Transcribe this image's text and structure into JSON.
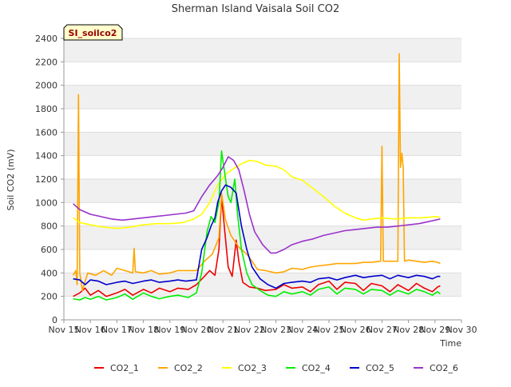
{
  "chart_data": {
    "type": "line",
    "title": "Sherman Island Vaisala Soil CO2",
    "badge": "SI_soilco2",
    "xlabel": "Time",
    "ylabel": "Soil CO2 (mV)",
    "xlim": [
      15,
      30
    ],
    "ylim": [
      0,
      2400
    ],
    "x_ticks": [
      {
        "value": 15,
        "label": "Nov 15"
      },
      {
        "value": 16,
        "label": "Nov 16"
      },
      {
        "value": 17,
        "label": "Nov 17"
      },
      {
        "value": 18,
        "label": "Nov 18"
      },
      {
        "value": 19,
        "label": "Nov 19"
      },
      {
        "value": 20,
        "label": "Nov 20"
      },
      {
        "value": 21,
        "label": "Nov 21"
      },
      {
        "value": 22,
        "label": "Nov 22"
      },
      {
        "value": 23,
        "label": "Nov 23"
      },
      {
        "value": 24,
        "label": "Nov 24"
      },
      {
        "value": 25,
        "label": "Nov 25"
      },
      {
        "value": 26,
        "label": "Nov 26"
      },
      {
        "value": 27,
        "label": "Nov 27"
      },
      {
        "value": 28,
        "label": "Nov 28"
      },
      {
        "value": 29,
        "label": "Nov 29"
      },
      {
        "value": 30,
        "label": "Nov 30"
      }
    ],
    "y_ticks": [
      0,
      200,
      400,
      600,
      800,
      1000,
      1200,
      1400,
      1600,
      1800,
      2000,
      2200,
      2400
    ],
    "grid": true,
    "legend_position": "bottom",
    "series": [
      {
        "name": "CO2_1",
        "color": "#ee0000",
        "points": [
          [
            15.35,
            200
          ],
          [
            15.6,
            230
          ],
          [
            15.8,
            270
          ],
          [
            16.0,
            210
          ],
          [
            16.3,
            250
          ],
          [
            16.6,
            200
          ],
          [
            17.0,
            230
          ],
          [
            17.3,
            260
          ],
          [
            17.6,
            210
          ],
          [
            18.0,
            260
          ],
          [
            18.3,
            230
          ],
          [
            18.6,
            270
          ],
          [
            19.0,
            240
          ],
          [
            19.3,
            270
          ],
          [
            19.7,
            260
          ],
          [
            20.0,
            300
          ],
          [
            20.3,
            370
          ],
          [
            20.5,
            420
          ],
          [
            20.7,
            380
          ],
          [
            20.85,
            600
          ],
          [
            20.95,
            1050
          ],
          [
            21.05,
            800
          ],
          [
            21.2,
            450
          ],
          [
            21.35,
            370
          ],
          [
            21.5,
            680
          ],
          [
            21.6,
            500
          ],
          [
            21.75,
            320
          ],
          [
            22.0,
            280
          ],
          [
            22.3,
            270
          ],
          [
            22.6,
            250
          ],
          [
            23.0,
            260
          ],
          [
            23.3,
            300
          ],
          [
            23.6,
            270
          ],
          [
            24.0,
            280
          ],
          [
            24.3,
            240
          ],
          [
            24.6,
            300
          ],
          [
            25.0,
            330
          ],
          [
            25.3,
            260
          ],
          [
            25.6,
            320
          ],
          [
            26.0,
            310
          ],
          [
            26.3,
            250
          ],
          [
            26.6,
            310
          ],
          [
            27.0,
            290
          ],
          [
            27.3,
            240
          ],
          [
            27.6,
            300
          ],
          [
            28.0,
            250
          ],
          [
            28.3,
            310
          ],
          [
            28.6,
            270
          ],
          [
            28.9,
            240
          ],
          [
            29.1,
            280
          ],
          [
            29.2,
            290
          ]
        ]
      },
      {
        "name": "CO2_2",
        "color": "#ffa500",
        "points": [
          [
            15.35,
            380
          ],
          [
            15.45,
            420
          ],
          [
            15.5,
            300
          ],
          [
            15.55,
            1920
          ],
          [
            15.6,
            400
          ],
          [
            15.7,
            250
          ],
          [
            15.9,
            400
          ],
          [
            16.2,
            380
          ],
          [
            16.5,
            420
          ],
          [
            16.8,
            380
          ],
          [
            17.0,
            440
          ],
          [
            17.3,
            420
          ],
          [
            17.6,
            400
          ],
          [
            17.65,
            610
          ],
          [
            17.7,
            410
          ],
          [
            18.0,
            400
          ],
          [
            18.3,
            420
          ],
          [
            18.6,
            390
          ],
          [
            19.0,
            400
          ],
          [
            19.3,
            420
          ],
          [
            19.6,
            420
          ],
          [
            20.0,
            420
          ],
          [
            20.3,
            500
          ],
          [
            20.6,
            560
          ],
          [
            20.85,
            700
          ],
          [
            20.95,
            1080
          ],
          [
            21.1,
            850
          ],
          [
            21.3,
            720
          ],
          [
            21.6,
            620
          ],
          [
            21.9,
            560
          ],
          [
            22.1,
            500
          ],
          [
            22.3,
            430
          ],
          [
            22.6,
            420
          ],
          [
            23.0,
            400
          ],
          [
            23.3,
            410
          ],
          [
            23.6,
            440
          ],
          [
            24.0,
            430
          ],
          [
            24.3,
            450
          ],
          [
            24.6,
            460
          ],
          [
            25.0,
            470
          ],
          [
            25.3,
            480
          ],
          [
            25.6,
            480
          ],
          [
            26.0,
            480
          ],
          [
            26.3,
            490
          ],
          [
            26.6,
            490
          ],
          [
            26.95,
            500
          ],
          [
            27.0,
            1480
          ],
          [
            27.05,
            500
          ],
          [
            27.3,
            500
          ],
          [
            27.6,
            500
          ],
          [
            27.65,
            2270
          ],
          [
            27.7,
            1300
          ],
          [
            27.75,
            1420
          ],
          [
            27.8,
            1300
          ],
          [
            27.85,
            500
          ],
          [
            28.0,
            510
          ],
          [
            28.3,
            500
          ],
          [
            28.6,
            490
          ],
          [
            28.9,
            500
          ],
          [
            29.1,
            490
          ],
          [
            29.2,
            480
          ]
        ]
      },
      {
        "name": "CO2_3",
        "color": "#ffff00",
        "points": [
          [
            15.35,
            870
          ],
          [
            15.6,
            830
          ],
          [
            16.0,
            810
          ],
          [
            16.5,
            790
          ],
          [
            17.0,
            780
          ],
          [
            17.5,
            790
          ],
          [
            18.0,
            810
          ],
          [
            18.5,
            820
          ],
          [
            19.0,
            820
          ],
          [
            19.5,
            830
          ],
          [
            19.9,
            860
          ],
          [
            20.2,
            900
          ],
          [
            20.5,
            1000
          ],
          [
            20.8,
            1150
          ],
          [
            21.1,
            1240
          ],
          [
            21.4,
            1290
          ],
          [
            21.7,
            1330
          ],
          [
            22.0,
            1360
          ],
          [
            22.3,
            1350
          ],
          [
            22.6,
            1320
          ],
          [
            23.0,
            1310
          ],
          [
            23.3,
            1280
          ],
          [
            23.6,
            1220
          ],
          [
            24.0,
            1190
          ],
          [
            24.4,
            1120
          ],
          [
            24.8,
            1050
          ],
          [
            25.2,
            970
          ],
          [
            25.6,
            910
          ],
          [
            26.0,
            870
          ],
          [
            26.3,
            850
          ],
          [
            26.6,
            860
          ],
          [
            27.0,
            870
          ],
          [
            27.5,
            860
          ],
          [
            28.0,
            870
          ],
          [
            28.5,
            870
          ],
          [
            29.0,
            880
          ],
          [
            29.2,
            875
          ]
        ]
      },
      {
        "name": "CO2_4",
        "color": "#00ee00",
        "points": [
          [
            15.35,
            180
          ],
          [
            15.6,
            170
          ],
          [
            15.8,
            190
          ],
          [
            16.0,
            175
          ],
          [
            16.3,
            200
          ],
          [
            16.6,
            170
          ],
          [
            17.0,
            190
          ],
          [
            17.3,
            220
          ],
          [
            17.6,
            175
          ],
          [
            18.0,
            230
          ],
          [
            18.3,
            200
          ],
          [
            18.6,
            180
          ],
          [
            19.0,
            200
          ],
          [
            19.3,
            210
          ],
          [
            19.7,
            190
          ],
          [
            20.0,
            230
          ],
          [
            20.2,
            400
          ],
          [
            20.4,
            750
          ],
          [
            20.55,
            880
          ],
          [
            20.7,
            830
          ],
          [
            20.85,
            1000
          ],
          [
            20.95,
            1440
          ],
          [
            21.1,
            1200
          ],
          [
            21.2,
            1050
          ],
          [
            21.3,
            1000
          ],
          [
            21.45,
            1200
          ],
          [
            21.55,
            900
          ],
          [
            21.7,
            600
          ],
          [
            21.9,
            400
          ],
          [
            22.1,
            300
          ],
          [
            22.4,
            250
          ],
          [
            22.7,
            210
          ],
          [
            23.0,
            200
          ],
          [
            23.3,
            240
          ],
          [
            23.6,
            220
          ],
          [
            24.0,
            240
          ],
          [
            24.3,
            210
          ],
          [
            24.6,
            260
          ],
          [
            25.0,
            280
          ],
          [
            25.3,
            220
          ],
          [
            25.6,
            270
          ],
          [
            26.0,
            260
          ],
          [
            26.3,
            220
          ],
          [
            26.6,
            260
          ],
          [
            27.0,
            250
          ],
          [
            27.3,
            210
          ],
          [
            27.6,
            250
          ],
          [
            28.0,
            220
          ],
          [
            28.3,
            260
          ],
          [
            28.6,
            240
          ],
          [
            28.9,
            210
          ],
          [
            29.1,
            240
          ],
          [
            29.2,
            220
          ]
        ]
      },
      {
        "name": "CO2_5",
        "color": "#0000cc",
        "points": [
          [
            15.35,
            350
          ],
          [
            15.6,
            340
          ],
          [
            15.8,
            300
          ],
          [
            16.0,
            340
          ],
          [
            16.3,
            330
          ],
          [
            16.6,
            300
          ],
          [
            17.0,
            320
          ],
          [
            17.3,
            330
          ],
          [
            17.6,
            310
          ],
          [
            18.0,
            330
          ],
          [
            18.3,
            340
          ],
          [
            18.6,
            320
          ],
          [
            19.0,
            330
          ],
          [
            19.3,
            340
          ],
          [
            19.6,
            330
          ],
          [
            20.0,
            340
          ],
          [
            20.2,
            600
          ],
          [
            20.4,
            700
          ],
          [
            20.55,
            800
          ],
          [
            20.7,
            870
          ],
          [
            20.8,
            1000
          ],
          [
            20.95,
            1100
          ],
          [
            21.1,
            1150
          ],
          [
            21.3,
            1130
          ],
          [
            21.5,
            1080
          ],
          [
            21.7,
            800
          ],
          [
            21.9,
            600
          ],
          [
            22.1,
            450
          ],
          [
            22.4,
            350
          ],
          [
            22.7,
            300
          ],
          [
            23.0,
            270
          ],
          [
            23.3,
            310
          ],
          [
            23.6,
            320
          ],
          [
            24.0,
            330
          ],
          [
            24.3,
            320
          ],
          [
            24.6,
            350
          ],
          [
            25.0,
            360
          ],
          [
            25.3,
            340
          ],
          [
            25.6,
            360
          ],
          [
            26.0,
            380
          ],
          [
            26.3,
            360
          ],
          [
            26.6,
            370
          ],
          [
            27.0,
            380
          ],
          [
            27.3,
            350
          ],
          [
            27.6,
            380
          ],
          [
            28.0,
            360
          ],
          [
            28.3,
            380
          ],
          [
            28.6,
            370
          ],
          [
            28.9,
            350
          ],
          [
            29.1,
            370
          ],
          [
            29.2,
            370
          ]
        ]
      },
      {
        "name": "CO2_6",
        "color": "#9932cc",
        "points": [
          [
            15.35,
            990
          ],
          [
            15.6,
            940
          ],
          [
            16.0,
            900
          ],
          [
            16.4,
            880
          ],
          [
            16.8,
            860
          ],
          [
            17.2,
            850
          ],
          [
            17.6,
            860
          ],
          [
            18.0,
            870
          ],
          [
            18.4,
            880
          ],
          [
            18.8,
            890
          ],
          [
            19.2,
            900
          ],
          [
            19.6,
            910
          ],
          [
            19.9,
            930
          ],
          [
            20.2,
            1050
          ],
          [
            20.5,
            1150
          ],
          [
            20.8,
            1230
          ],
          [
            21.0,
            1300
          ],
          [
            21.2,
            1390
          ],
          [
            21.4,
            1360
          ],
          [
            21.6,
            1280
          ],
          [
            21.8,
            1100
          ],
          [
            22.0,
            900
          ],
          [
            22.2,
            750
          ],
          [
            22.5,
            640
          ],
          [
            22.8,
            570
          ],
          [
            23.0,
            570
          ],
          [
            23.3,
            600
          ],
          [
            23.6,
            640
          ],
          [
            24.0,
            670
          ],
          [
            24.4,
            690
          ],
          [
            24.8,
            720
          ],
          [
            25.2,
            740
          ],
          [
            25.6,
            760
          ],
          [
            26.0,
            770
          ],
          [
            26.4,
            780
          ],
          [
            26.8,
            790
          ],
          [
            27.2,
            790
          ],
          [
            27.6,
            800
          ],
          [
            28.0,
            810
          ],
          [
            28.4,
            820
          ],
          [
            28.8,
            840
          ],
          [
            29.2,
            860
          ]
        ]
      }
    ]
  }
}
